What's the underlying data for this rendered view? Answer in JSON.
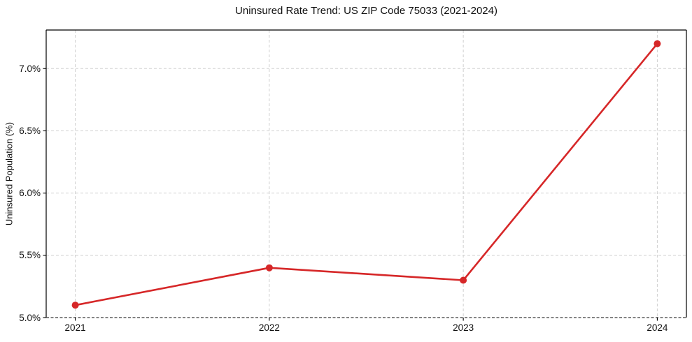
{
  "chart_data": {
    "type": "line",
    "title": "Uninsured Rate Trend: US ZIP Code 75033 (2021-2024)",
    "xlabel": "",
    "ylabel": "Uninsured Population (%)",
    "x": [
      2021,
      2022,
      2023,
      2024
    ],
    "x_tick_labels": [
      "2021",
      "2022",
      "2023",
      "2024"
    ],
    "series": [
      {
        "name": "uninsured-rate",
        "values": [
          5.1,
          5.4,
          5.3,
          7.2
        ]
      }
    ],
    "y_ticks": [
      5.0,
      5.5,
      6.0,
      6.5,
      7.0
    ],
    "y_tick_labels": [
      "5.0%",
      "5.5%",
      "6.0%",
      "6.5%",
      "7.0%"
    ],
    "xlim": [
      2020.85,
      2024.15
    ],
    "ylim": [
      5.0,
      7.31
    ],
    "grid": true,
    "grid_style": "dashed",
    "legend": false,
    "colors": {
      "line": "#d62728",
      "marker": "#d62728",
      "grid": "#cfcfcf",
      "spine": "#000000",
      "bottom_edge": "#3a3a3a",
      "text": "#111111",
      "background": "#ffffff"
    }
  }
}
